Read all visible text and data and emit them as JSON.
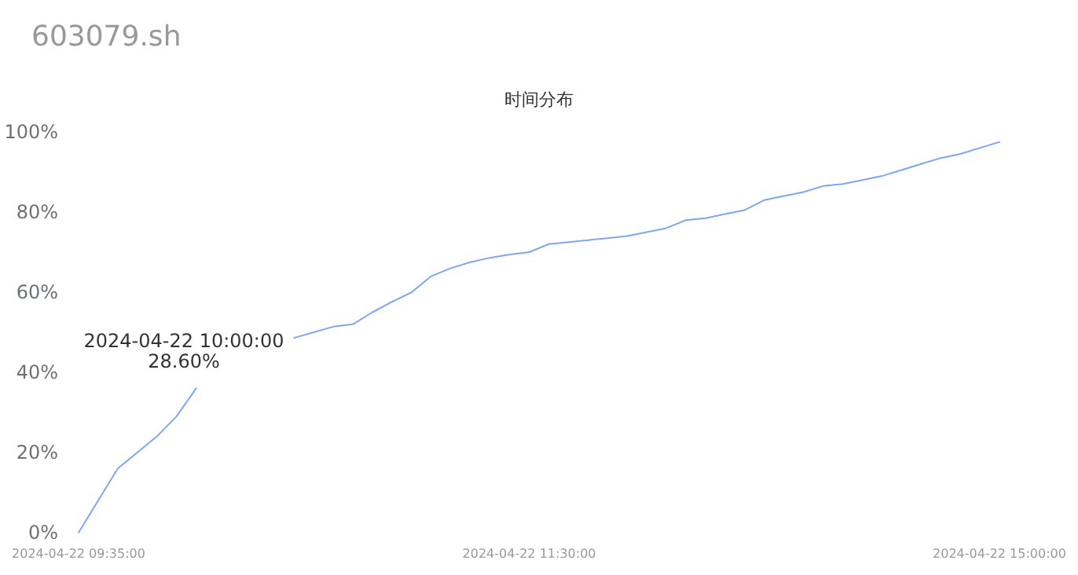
{
  "chart_data": {
    "type": "line",
    "title": "603079.sh",
    "subtitle": "时间分布",
    "categories": [
      "2024-04-22 09:35:00",
      null,
      null,
      null,
      null,
      null,
      null,
      null,
      null,
      null,
      null,
      null,
      null,
      null,
      null,
      null,
      null,
      null,
      null,
      null,
      null,
      null,
      null,
      "2024-04-22 11:30:00",
      null,
      null,
      null,
      null,
      null,
      null,
      null,
      null,
      null,
      null,
      null,
      null,
      null,
      null,
      null,
      null,
      null,
      null,
      null,
      null,
      null,
      null,
      null,
      "2024-04-22 15:00:00"
    ],
    "series": [
      {
        "color": "#7ea6f4",
        "values": [
          0,
          8,
          16,
          20,
          24,
          29,
          36,
          null,
          null,
          null,
          null,
          48.6,
          50,
          51.4,
          52,
          55,
          57.6,
          60,
          64,
          66,
          67.5,
          68.6,
          69.4,
          70,
          72,
          72.5,
          73,
          73.5,
          74,
          75,
          76,
          78,
          78.5,
          79.5,
          80.5,
          83,
          84,
          85,
          86.5,
          87,
          88,
          89,
          90.5,
          92,
          93.5,
          94.5,
          96,
          97.5
        ]
      }
    ],
    "ylim": [
      0,
      100
    ],
    "yticks": [
      {
        "value": 0,
        "label": "0%"
      },
      {
        "value": 20,
        "label": "20%"
      },
      {
        "value": 40,
        "label": "40%"
      },
      {
        "value": 60,
        "label": "60%"
      },
      {
        "value": 80,
        "label": "80%"
      },
      {
        "value": 100,
        "label": "100%"
      }
    ],
    "annotations": [
      "2024-04-22 10:00:00",
      "28.60%"
    ]
  }
}
